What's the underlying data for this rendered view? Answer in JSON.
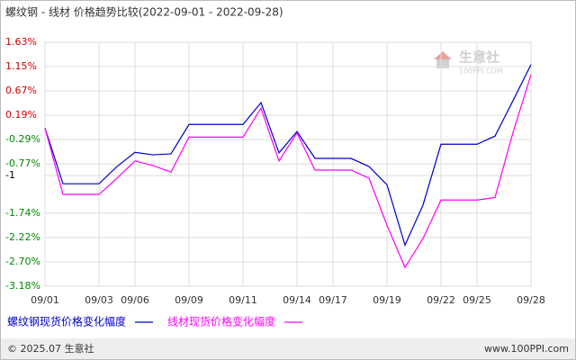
{
  "chart_data": {
    "type": "line",
    "title": "螺纹钢 - 线材 价格趋势比较(2022-09-01 - 2022-09-28)",
    "watermark": "生意社",
    "watermark_sub": "100PPI.COM",
    "footer_left": "© 2025.07 生意社",
    "footer_right": "www.100PPI.com",
    "categories": [
      "09/01",
      null,
      null,
      "09/03",
      null,
      "09/06",
      null,
      null,
      "09/09",
      null,
      null,
      "09/11",
      null,
      null,
      "09/14",
      null,
      "09/17",
      null,
      null,
      "09/19",
      null,
      null,
      "09/22",
      null,
      "09/25",
      null,
      null,
      "09/28"
    ],
    "series": [
      {
        "name": "螺纹钢现货价格变化幅度",
        "color": "#0000cc",
        "values": [
          -0.06,
          -1.16,
          -1.16,
          -1.16,
          -0.82,
          -0.54,
          -0.59,
          -0.57,
          0.01,
          0.01,
          0.01,
          0.01,
          0.44,
          -0.55,
          -0.13,
          -0.66,
          -0.66,
          -0.66,
          -0.82,
          -1.18,
          -2.37,
          -1.58,
          -0.38,
          -0.38,
          -0.38,
          -0.22,
          0.48,
          1.19
        ]
      },
      {
        "name": "线材现货价格变化幅度",
        "color": "#ff00ff",
        "values": [
          -0.06,
          -1.37,
          -1.37,
          -1.37,
          -1.05,
          -0.71,
          -0.8,
          -0.93,
          -0.24,
          -0.24,
          -0.24,
          -0.24,
          0.33,
          -0.71,
          -0.16,
          -0.89,
          -0.89,
          -0.89,
          -1.05,
          -1.98,
          -2.81,
          -2.24,
          -1.48,
          -1.48,
          -1.48,
          -1.43,
          -0.15,
          0.99
        ]
      }
    ],
    "ylim": [
      -3.18,
      1.63
    ],
    "yticks": [
      {
        "value": 1.63,
        "label": "1.63%"
      },
      {
        "value": 1.15,
        "label": "1.15%"
      },
      {
        "value": 0.67,
        "label": "0.67%"
      },
      {
        "value": 0.19,
        "label": "0.19%"
      },
      {
        "value": -0.29,
        "label": "-0.29%"
      },
      {
        "value": -0.77,
        "label": "-0.77%"
      },
      -1,
      {
        "value": -1.74,
        "label": "-1.74%"
      },
      {
        "value": -2.22,
        "label": "-2.22%"
      },
      {
        "value": -2.7,
        "label": "-2.70%"
      },
      {
        "value": -3.18,
        "label": "-3.18%"
      }
    ],
    "grid": true
  }
}
